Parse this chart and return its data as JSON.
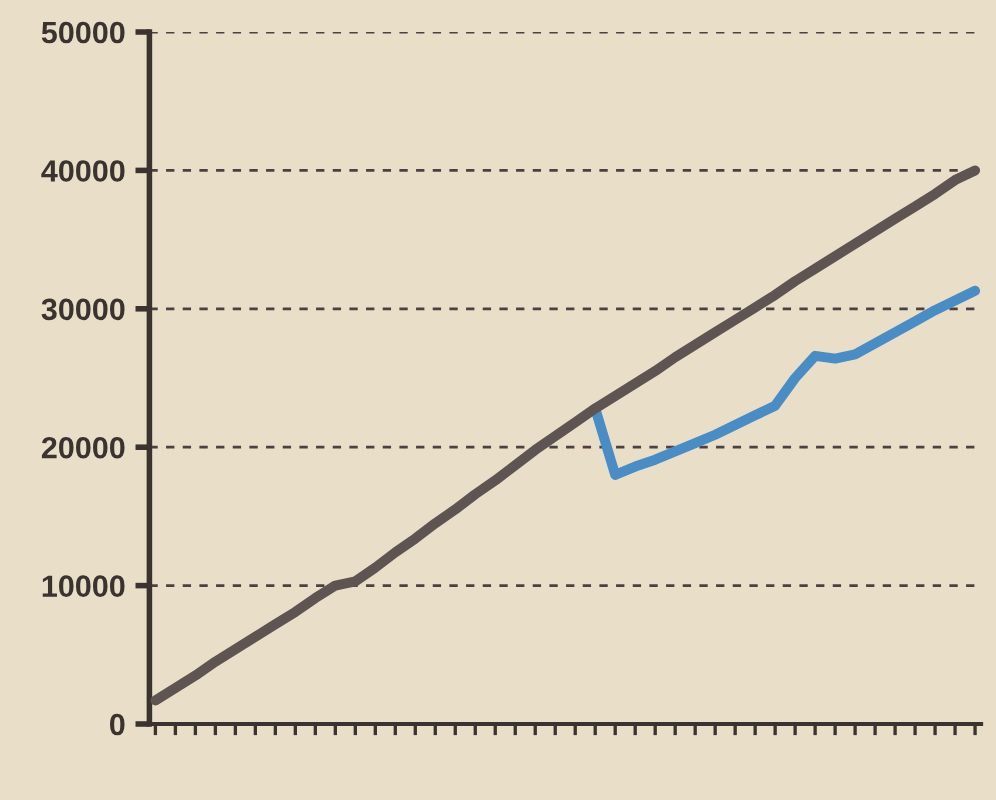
{
  "chart_data": {
    "type": "line",
    "categories": [
      null,
      null,
      null,
      null,
      null,
      null,
      null,
      null,
      null,
      null,
      null,
      null,
      null,
      null,
      null,
      null,
      null,
      null,
      null,
      null,
      null,
      null,
      null,
      null,
      null,
      null,
      null,
      null,
      null,
      null,
      null,
      null,
      null,
      null,
      null,
      null,
      null,
      null,
      null,
      null,
      null,
      null
    ],
    "series": [
      {
        "color": "#4a8cc4",
        "values": [
          null,
          null,
          null,
          null,
          null,
          null,
          null,
          null,
          null,
          null,
          null,
          null,
          null,
          null,
          null,
          null,
          null,
          null,
          null,
          null,
          null,
          null,
          22800,
          18000,
          18600,
          19100,
          19700,
          20300,
          20900,
          21600,
          22300,
          23000,
          25000,
          26600,
          26400,
          26700,
          27500,
          28300,
          29100,
          29900,
          30600,
          31300
        ]
      },
      {
        "color": "#5e5552",
        "values": [
          1700,
          2600,
          3500,
          4500,
          5400,
          6300,
          7200,
          8100,
          9100,
          10000,
          10300,
          11300,
          12400,
          13400,
          14500,
          15500,
          16600,
          17600,
          18700,
          19800,
          20800,
          21800,
          22800,
          23700,
          24600,
          25500,
          26500,
          27400,
          28300,
          29200,
          30100,
          31000,
          32000,
          32900,
          33800,
          34700,
          35600,
          36500,
          37400,
          38300,
          39300,
          40000
        ]
      }
    ],
    "ylim": [
      0,
      50000
    ],
    "yticks": [
      0,
      10000,
      20000,
      30000,
      40000,
      50000
    ],
    "grid": "y",
    "line_style": "solid",
    "marker": "none"
  }
}
